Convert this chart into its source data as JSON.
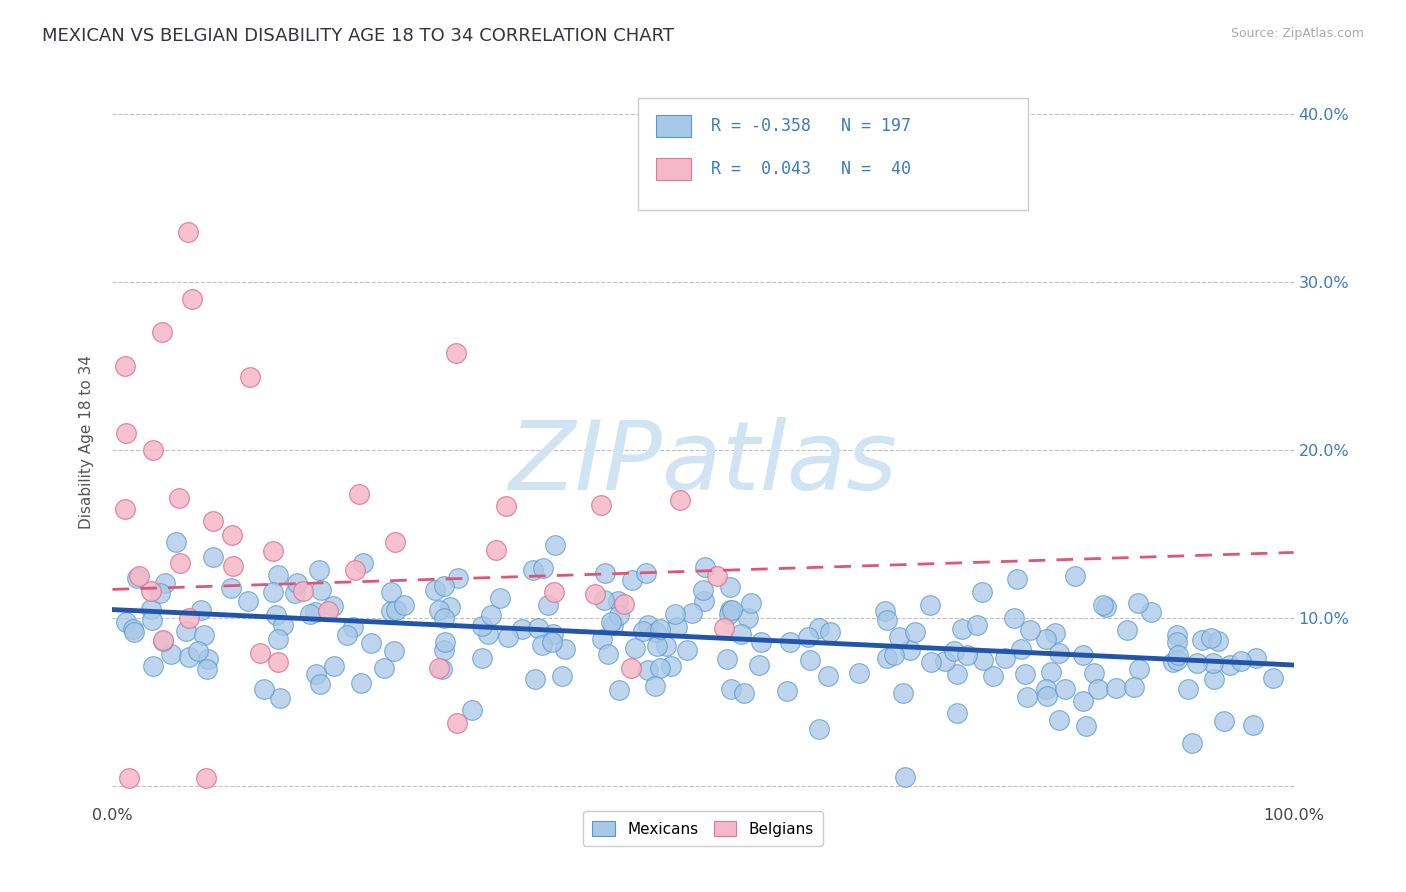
{
  "title": "MEXICAN VS BELGIAN DISABILITY AGE 18 TO 34 CORRELATION CHART",
  "source_text": "Source: ZipAtlas.com",
  "ylabel": "Disability Age 18 to 34",
  "xlim": [
    0.0,
    1.0
  ],
  "ylim": [
    -0.01,
    0.42
  ],
  "yticks": [
    0.0,
    0.1,
    0.2,
    0.3,
    0.4
  ],
  "ytick_labels_left": [
    "",
    "",
    "",
    "",
    ""
  ],
  "ytick_labels_right": [
    "",
    "10.0%",
    "20.0%",
    "30.0%",
    "40.0%"
  ],
  "xtick_positions": [
    0.0,
    0.5,
    1.0
  ],
  "xtick_labels": [
    "0.0%",
    "",
    "100.0%"
  ],
  "title_fontsize": 13,
  "axis_label_fontsize": 11,
  "tick_fontsize": 11.5,
  "blue_color": "#a8c8e8",
  "blue_edge_color": "#5599cc",
  "pink_color": "#f5b8c8",
  "pink_edge_color": "#dd7799",
  "blue_line_color": "#2255aa",
  "pink_line_color": "#dd5577",
  "watermark_color": "#d0e4f4",
  "background_color": "#ffffff",
  "grid_color": "#bbbbbb",
  "mexicans_intercept": 0.105,
  "mexicans_slope": -0.033,
  "belgians_intercept": 0.117,
  "belgians_slope": 0.022,
  "mexicans_N": 197,
  "belgians_N": 40
}
